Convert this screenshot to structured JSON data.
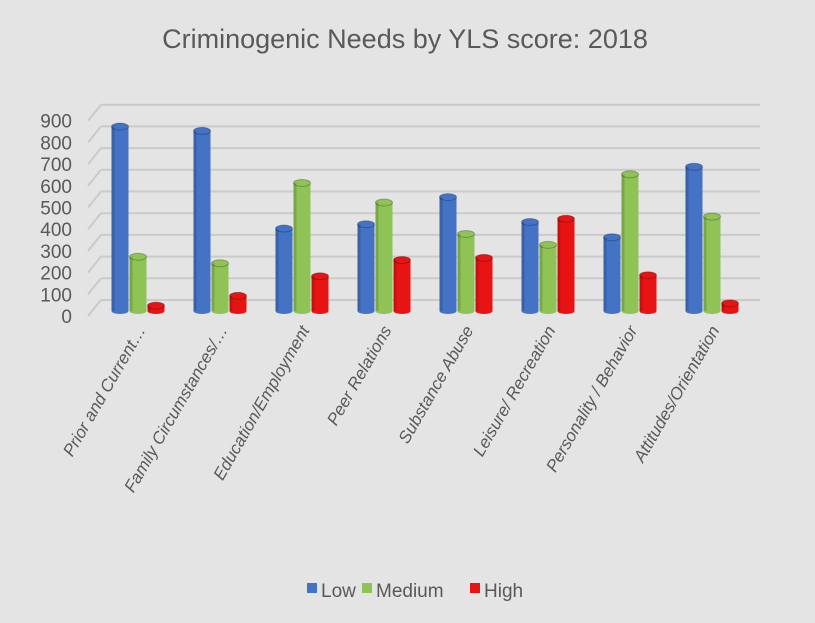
{
  "chart_data": {
    "type": "bar",
    "title": "Criminogenic Needs by YLS score:  2018",
    "xlabel": "",
    "ylabel": "",
    "ylim": [
      0,
      900
    ],
    "yticks": [
      0,
      100,
      200,
      300,
      400,
      500,
      600,
      700,
      800,
      900
    ],
    "grid": true,
    "legend_position": "bottom",
    "categories": [
      "Prior and Current…",
      "Family Circumstances/…",
      "Education/Employment",
      "Peer Relations",
      "Substance Abuse",
      "Leisure/ Recreation",
      "Personality / Behavior",
      "Attitudes/Orientation"
    ],
    "series": [
      {
        "name": "Low",
        "color": "#4472c4",
        "values": [
          850,
          830,
          380,
          400,
          525,
          410,
          340,
          665
        ]
      },
      {
        "name": "Medium",
        "color": "#8fc356",
        "values": [
          250,
          220,
          590,
          500,
          355,
          305,
          630,
          435
        ]
      },
      {
        "name": "High",
        "color": "#e81414",
        "values": [
          25,
          70,
          160,
          235,
          245,
          425,
          165,
          35
        ]
      }
    ]
  }
}
